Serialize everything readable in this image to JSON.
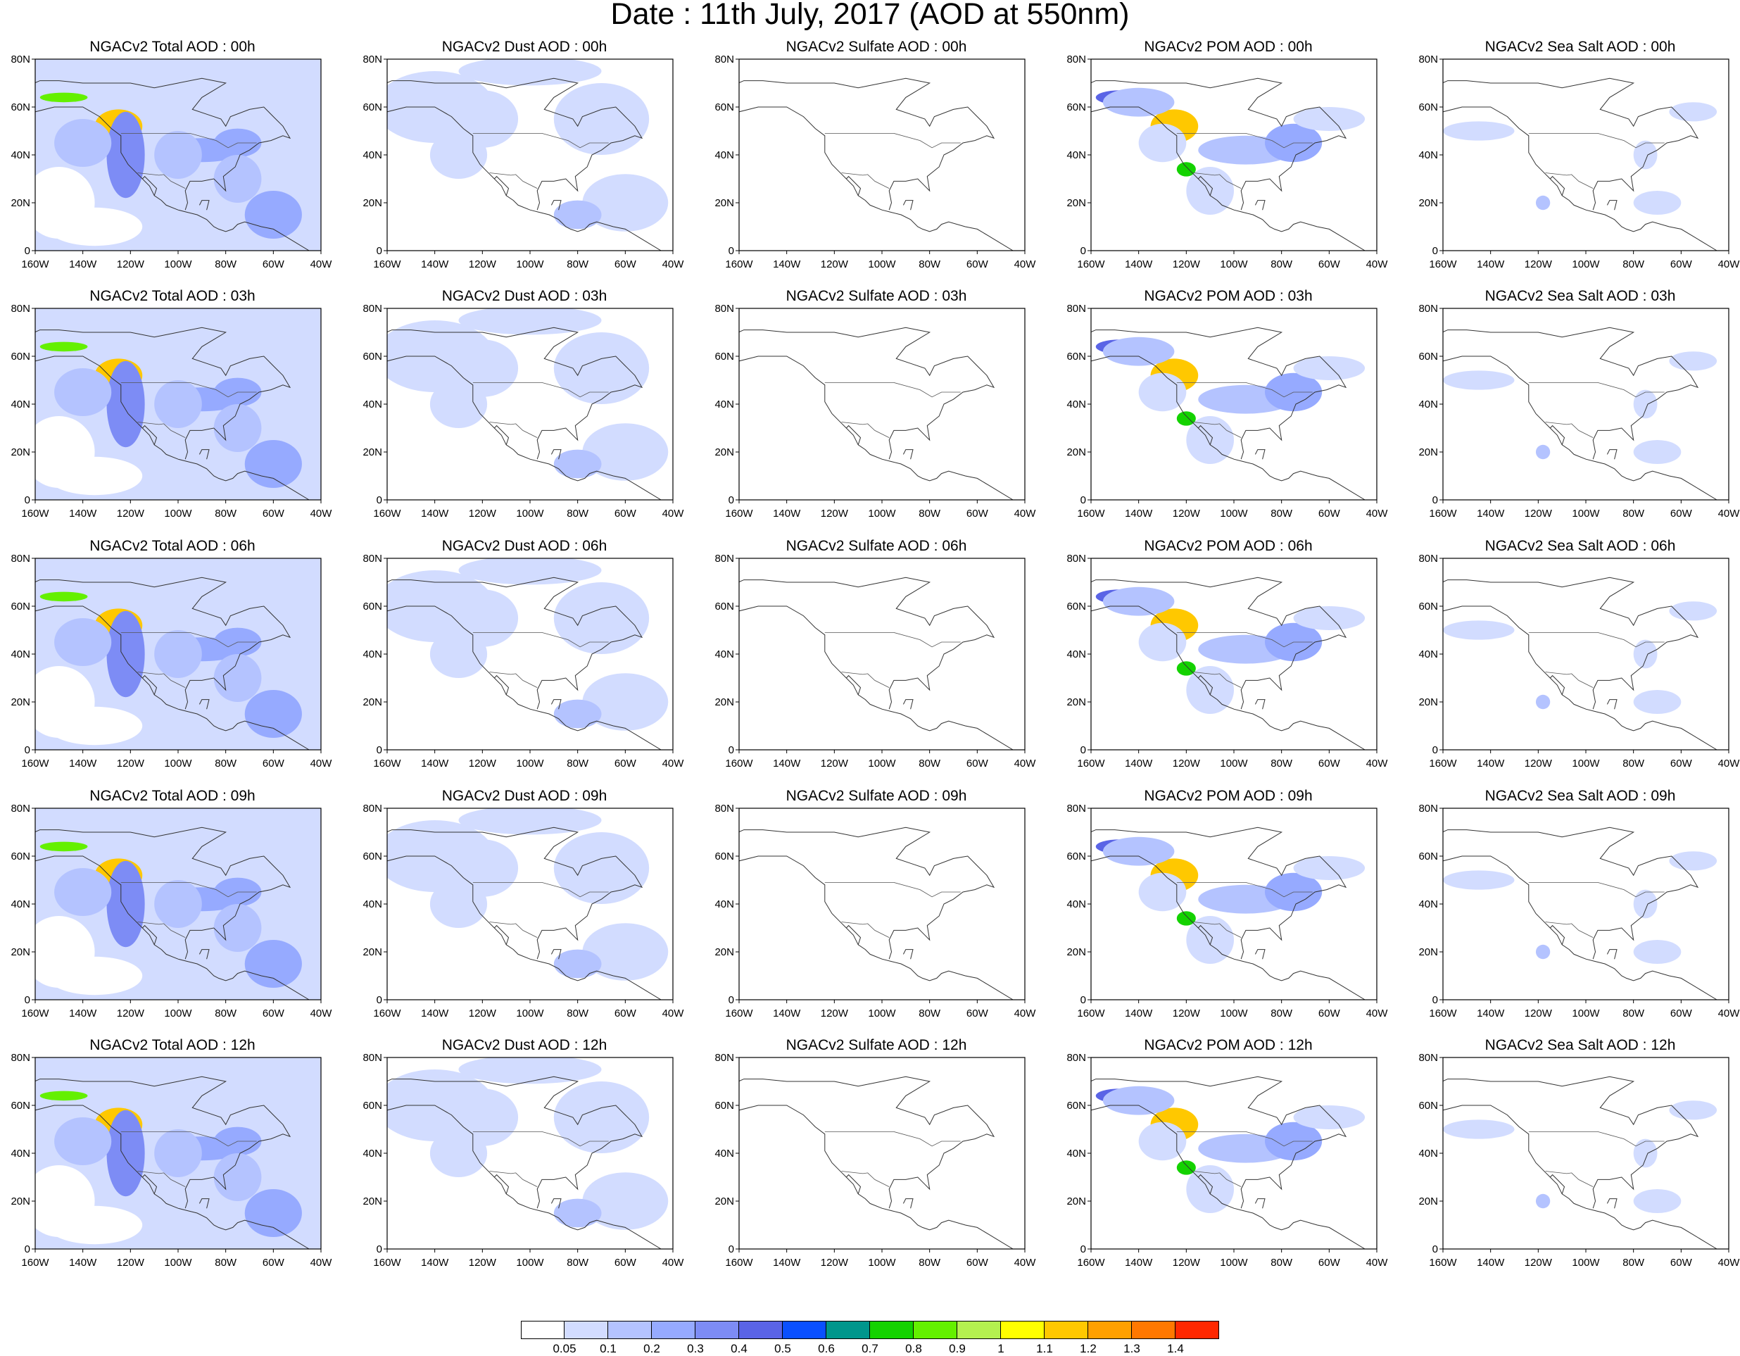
{
  "figure": {
    "title": "Date : 11th July, 2017 (AOD at 550nm)"
  },
  "map_axes": {
    "lat_labels": [
      "80N",
      "60N",
      "40N",
      "20N",
      "0"
    ],
    "lat_values": [
      80,
      60,
      40,
      20,
      0
    ],
    "lon_labels": [
      "160W",
      "140W",
      "120W",
      "100W",
      "80W",
      "60W",
      "40W"
    ],
    "lon_values": [
      -160,
      -140,
      -120,
      -100,
      -80,
      -60,
      -40
    ],
    "lon_range": [
      -160,
      -40
    ],
    "lat_range": [
      0,
      80
    ]
  },
  "panels": [
    [
      {
        "title": "NGACv2 Total AOD : 00h",
        "species": "total"
      },
      {
        "title": "NGACv2 Dust AOD : 00h",
        "species": "dust"
      },
      {
        "title": "NGACv2 Sulfate AOD : 00h",
        "species": "sulfate"
      },
      {
        "title": "NGACv2 POM AOD : 00h",
        "species": "pom"
      },
      {
        "title": "NGACv2 Sea Salt AOD : 00h",
        "species": "seasalt"
      }
    ],
    [
      {
        "title": "NGACv2 Total AOD : 03h",
        "species": "total"
      },
      {
        "title": "NGACv2 Dust AOD : 03h",
        "species": "dust"
      },
      {
        "title": "NGACv2 Sulfate AOD : 03h",
        "species": "sulfate"
      },
      {
        "title": "NGACv2 POM AOD : 03h",
        "species": "pom"
      },
      {
        "title": "NGACv2 Sea Salt AOD : 03h",
        "species": "seasalt"
      }
    ],
    [
      {
        "title": "NGACv2 Total AOD : 06h",
        "species": "total"
      },
      {
        "title": "NGACv2 Dust AOD : 06h",
        "species": "dust"
      },
      {
        "title": "NGACv2 Sulfate AOD : 06h",
        "species": "sulfate"
      },
      {
        "title": "NGACv2 POM AOD : 06h",
        "species": "pom"
      },
      {
        "title": "NGACv2 Sea Salt AOD : 06h",
        "species": "seasalt"
      }
    ],
    [
      {
        "title": "NGACv2 Total AOD : 09h",
        "species": "total"
      },
      {
        "title": "NGACv2 Dust AOD : 09h",
        "species": "dust"
      },
      {
        "title": "NGACv2 Sulfate AOD : 09h",
        "species": "sulfate"
      },
      {
        "title": "NGACv2 POM AOD : 09h",
        "species": "pom"
      },
      {
        "title": "NGACv2 Sea Salt  AOD : 09h",
        "species": "seasalt"
      }
    ],
    [
      {
        "title": "NGACv2 Total AOD  : 12h",
        "species": "total"
      },
      {
        "title": "NGACv2 Dust AOD : 12h",
        "species": "dust"
      },
      {
        "title": "NGACv2 Sulfate AOD : 12h",
        "species": "sulfate"
      },
      {
        "title": "NGACv2 POM  AOD : 12h",
        "species": "pom"
      },
      {
        "title": "NGACv2 Sea Salt  AOD : 12h",
        "species": "seasalt"
      }
    ]
  ],
  "colorbar": {
    "labels": [
      "0.05",
      "0.1",
      "0.2",
      "0.3",
      "0.4",
      "0.5",
      "0.6",
      "0.7",
      "0.8",
      "0.9",
      "1",
      "1.1",
      "1.2",
      "1.3",
      "1.4"
    ],
    "colors": [
      "#ffffff",
      "#d2dcff",
      "#b4c3ff",
      "#96aaff",
      "#7d8cf5",
      "#5a64e6",
      "#0a50ff",
      "#00968c",
      "#14d200",
      "#64f000",
      "#b4f050",
      "#ffff00",
      "#ffc800",
      "#ffa000",
      "#ff7800",
      "#ff2800"
    ]
  }
}
